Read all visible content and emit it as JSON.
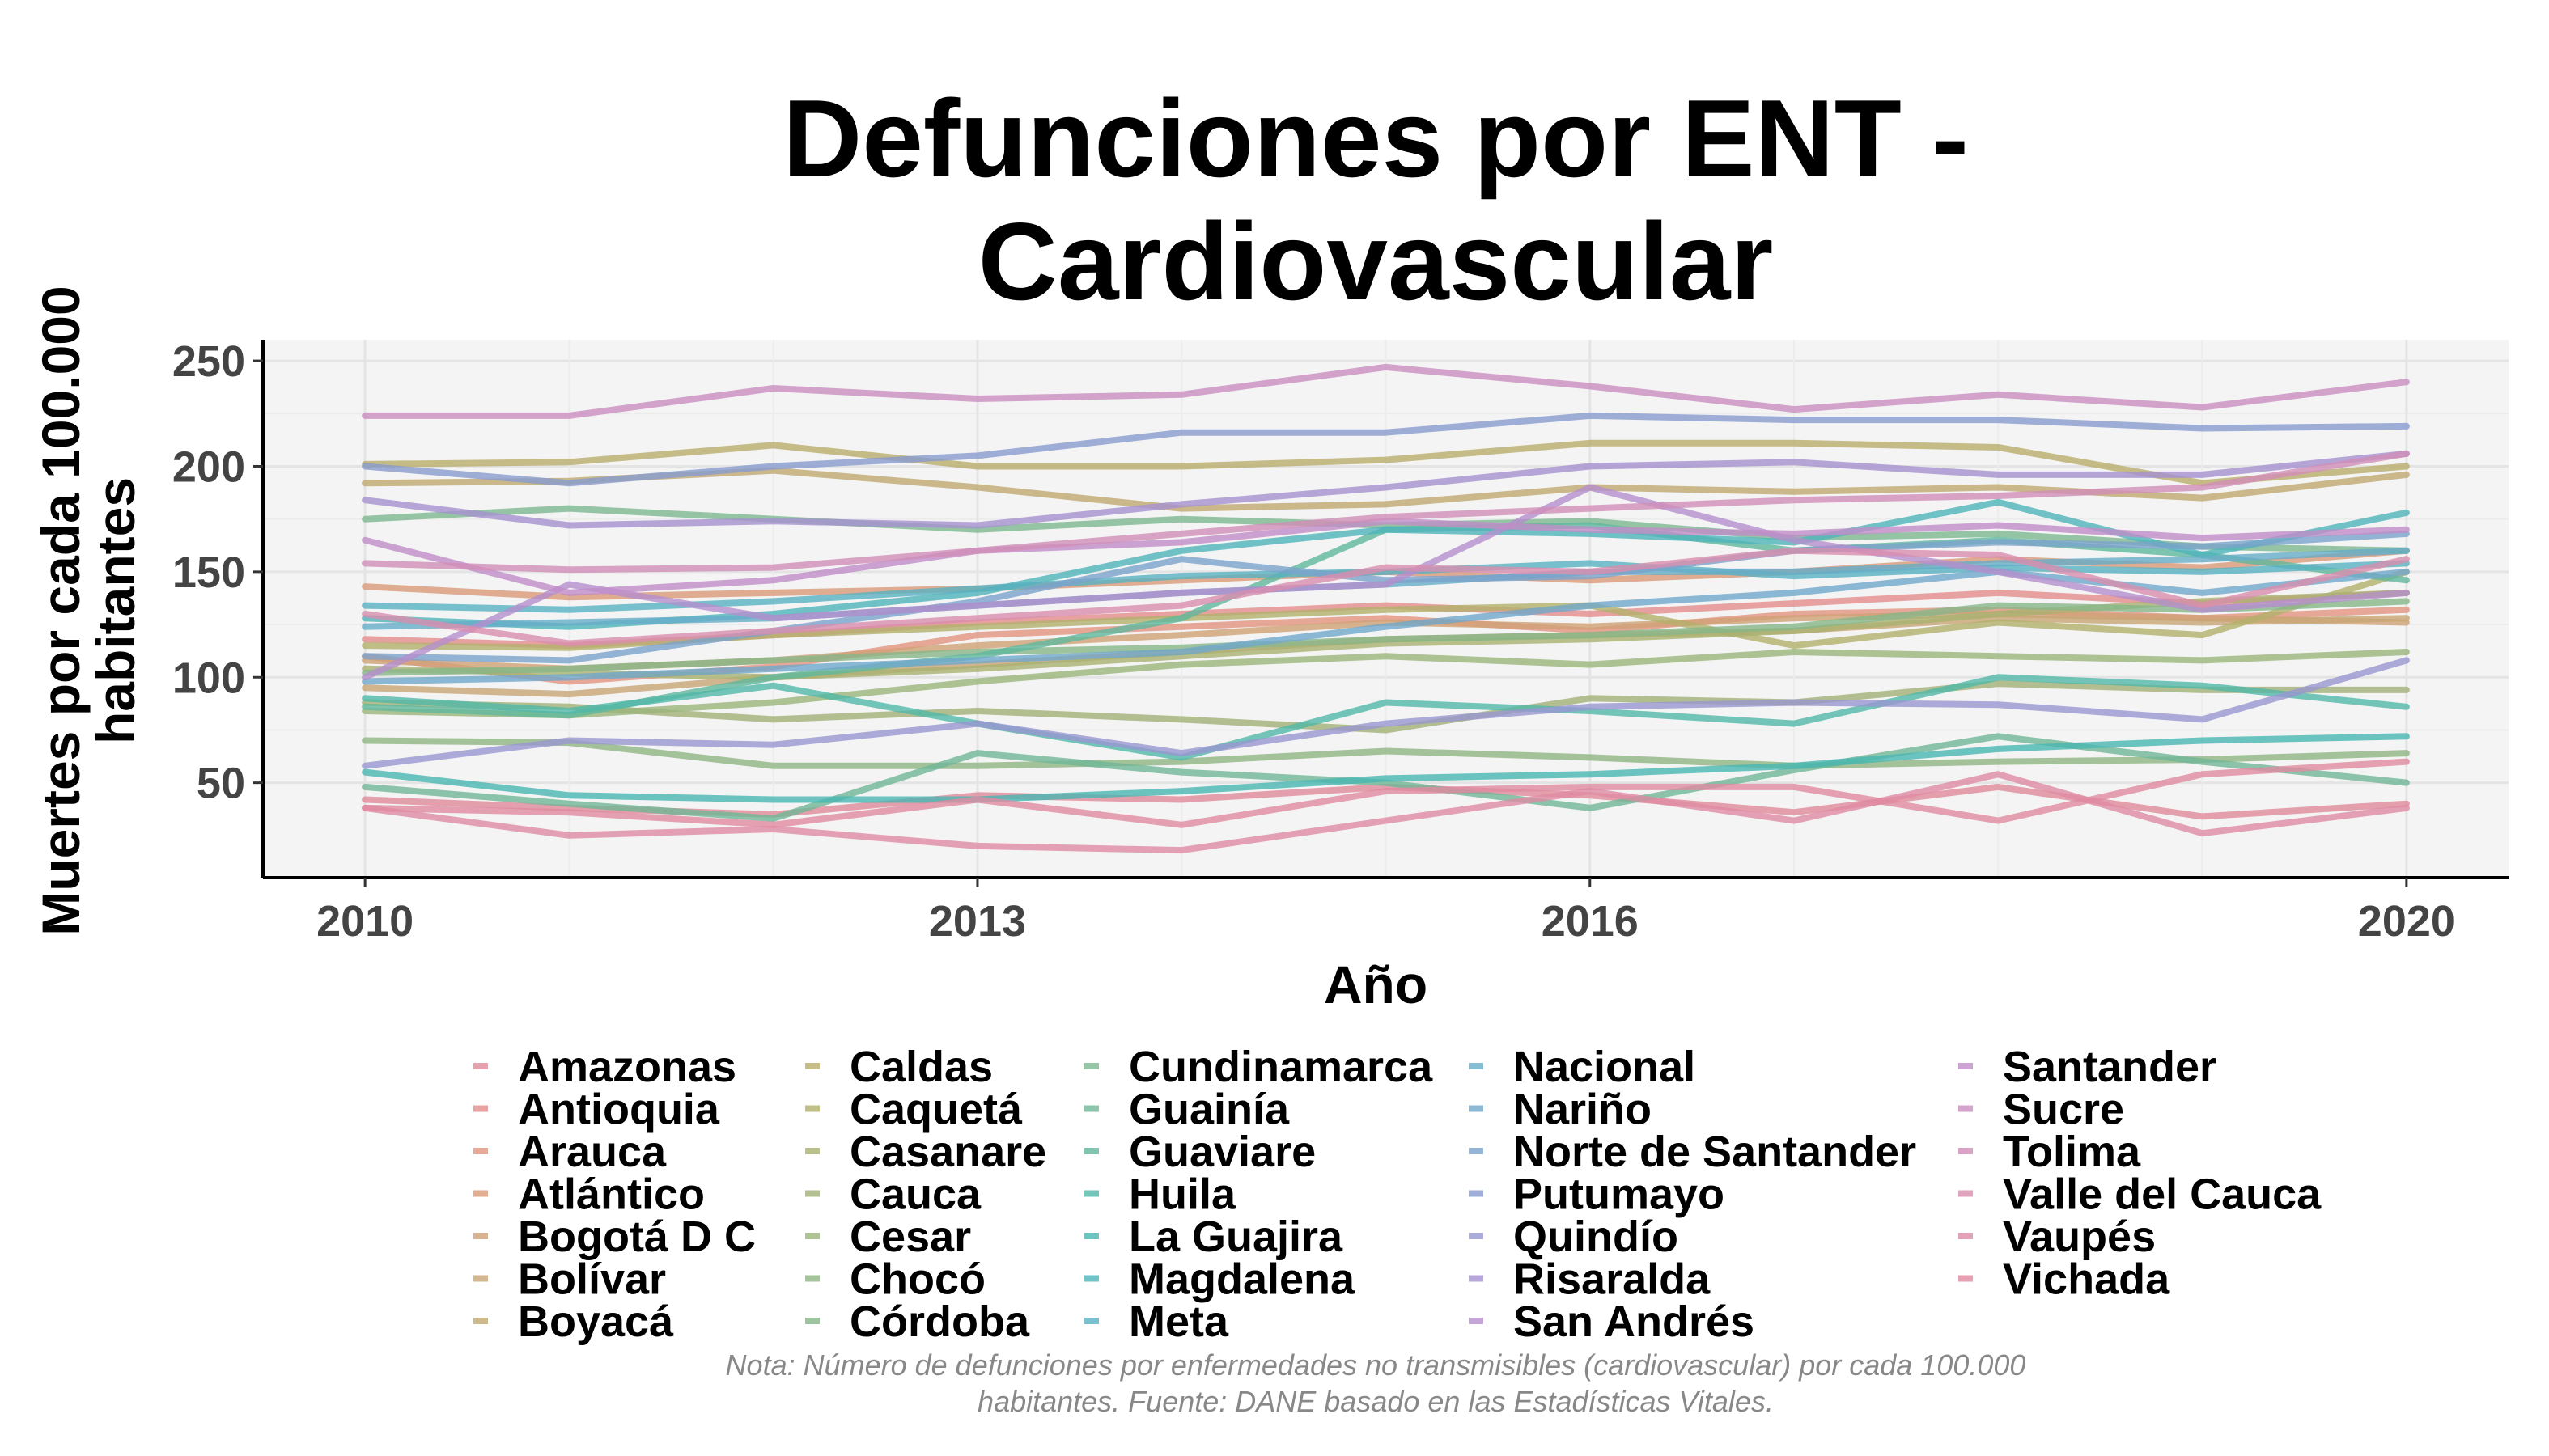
{
  "chart_data": {
    "type": "line",
    "title": [
      "Defunciones por ENT -",
      "Cardiovascular"
    ],
    "xlabel": "Año",
    "ylabel": [
      "Muertes por cada 100.000",
      "habitantes"
    ],
    "x": [
      2010,
      2011,
      2012,
      2013,
      2014,
      2015,
      2016,
      2017,
      2018,
      2019,
      2020
    ],
    "xticks": [
      "2010",
      "2013",
      "2016",
      "2020"
    ],
    "xtick_values": [
      2010,
      2013,
      2016,
      2020
    ],
    "yticks": [
      "50",
      "100",
      "150",
      "200",
      "250"
    ],
    "ytick_values": [
      50,
      100,
      150,
      200,
      250
    ],
    "xlim": [
      2009.5,
      2020.5
    ],
    "ylim": [
      5,
      260
    ],
    "grid": true,
    "legend_position": "bottom",
    "caption": [
      "Nota: Número de defunciones por enfermedades no transmisibles (cardiovascular) por cada 100.000",
      "habitantes. Fuente: DANE basado en las Estadísticas Vitales."
    ],
    "series": [
      {
        "name": "Amazonas",
        "color": "#E08A9A",
        "values": [
          42,
          38,
          35,
          44,
          42,
          48,
          44,
          36,
          48,
          34,
          40
        ]
      },
      {
        "name": "Antioquia",
        "color": "#E48C8C",
        "values": [
          118,
          115,
          120,
          126,
          130,
          134,
          130,
          135,
          140,
          135,
          140
        ]
      },
      {
        "name": "Arauca",
        "color": "#E2937F",
        "values": [
          110,
          98,
          105,
          120,
          124,
          128,
          122,
          130,
          132,
          128,
          132
        ]
      },
      {
        "name": "Atlántico",
        "color": "#DA9A78",
        "values": [
          143,
          138,
          140,
          142,
          146,
          150,
          146,
          150,
          156,
          152,
          160
        ]
      },
      {
        "name": "Bogotá D C",
        "color": "#D0A176",
        "values": [
          108,
          104,
          108,
          115,
          120,
          126,
          124,
          128,
          130,
          128,
          126
        ]
      },
      {
        "name": "Bolívar",
        "color": "#C8A574",
        "values": [
          95,
          92,
          100,
          106,
          112,
          118,
          120,
          122,
          128,
          126,
          128
        ]
      },
      {
        "name": "Boyacá",
        "color": "#BFA86F",
        "values": [
          192,
          193,
          198,
          190,
          180,
          182,
          190,
          188,
          190,
          185,
          196
        ]
      },
      {
        "name": "Caldas",
        "color": "#B9AC6B",
        "values": [
          201,
          202,
          210,
          200,
          200,
          203,
          211,
          211,
          209,
          192,
          200
        ]
      },
      {
        "name": "Caquetá",
        "color": "#B3B06C",
        "values": [
          115,
          114,
          120,
          124,
          128,
          132,
          134,
          115,
          126,
          120,
          150
        ]
      },
      {
        "name": "Casanare",
        "color": "#A9B271",
        "values": [
          104,
          102,
          100,
          104,
          110,
          116,
          118,
          122,
          130,
          136,
          140
        ]
      },
      {
        "name": "Cauca",
        "color": "#A2B077",
        "values": [
          88,
          86,
          80,
          84,
          80,
          75,
          90,
          88,
          97,
          94,
          94
        ]
      },
      {
        "name": "Cesar",
        "color": "#9AB57A",
        "values": [
          84,
          82,
          88,
          98,
          106,
          110,
          106,
          112,
          110,
          108,
          112
        ]
      },
      {
        "name": "Chocó",
        "color": "#8FB582",
        "values": [
          70,
          69,
          58,
          58,
          60,
          65,
          62,
          58,
          60,
          61,
          64
        ]
      },
      {
        "name": "Córdoba",
        "color": "#86B788",
        "values": [
          102,
          104,
          108,
          112,
          114,
          118,
          120,
          124,
          134,
          132,
          136
        ]
      },
      {
        "name": "Cundinamarca",
        "color": "#7DB890",
        "values": [
          175,
          180,
          175,
          170,
          175,
          172,
          174,
          166,
          168,
          162,
          160
        ]
      },
      {
        "name": "Guainía",
        "color": "#6FB796",
        "values": [
          48,
          40,
          33,
          64,
          55,
          50,
          38,
          56,
          72,
          60,
          50
        ]
      },
      {
        "name": "Guaviare",
        "color": "#5FB89E",
        "values": [
          86,
          82,
          100,
          110,
          128,
          170,
          172,
          160,
          165,
          158,
          146
        ]
      },
      {
        "name": "Huila",
        "color": "#50B8A8",
        "values": [
          90,
          84,
          96,
          78,
          62,
          88,
          84,
          78,
          100,
          96,
          86
        ]
      },
      {
        "name": "La Guajira",
        "color": "#47B7B2",
        "values": [
          55,
          44,
          42,
          42,
          46,
          52,
          54,
          58,
          66,
          70,
          72
        ]
      },
      {
        "name": "Magdalena",
        "color": "#4DB4BA",
        "values": [
          128,
          124,
          130,
          140,
          160,
          170,
          168,
          164,
          183,
          158,
          178
        ]
      },
      {
        "name": "Meta",
        "color": "#58B2C2",
        "values": [
          134,
          132,
          136,
          142,
          148,
          150,
          154,
          148,
          152,
          150,
          154
        ]
      },
      {
        "name": "Nacional",
        "color": "#66ADC8",
        "values": [
          124,
          126,
          128,
          134,
          140,
          144,
          150,
          150,
          154,
          156,
          160
        ]
      },
      {
        "name": "Nariño",
        "color": "#6FA7CA",
        "values": [
          98,
          100,
          104,
          108,
          112,
          124,
          134,
          140,
          150,
          140,
          150
        ]
      },
      {
        "name": "Norte de Santander",
        "color": "#7AA2CC",
        "values": [
          110,
          108,
          122,
          136,
          156,
          146,
          148,
          160,
          164,
          162,
          168
        ]
      },
      {
        "name": "Putumayo",
        "color": "#879BCE",
        "values": [
          200,
          192,
          200,
          205,
          216,
          216,
          224,
          222,
          222,
          218,
          219
        ]
      },
      {
        "name": "Quindío",
        "color": "#9896CF",
        "values": [
          58,
          70,
          68,
          78,
          64,
          78,
          86,
          88,
          87,
          80,
          108
        ]
      },
      {
        "name": "Risaralda",
        "color": "#A591CF",
        "values": [
          184,
          172,
          174,
          172,
          182,
          190,
          200,
          202,
          196,
          196,
          206
        ]
      },
      {
        "name": "San Andrés",
        "color": "#B48ECD",
        "values": [
          100,
          144,
          128,
          134,
          140,
          144,
          190,
          165,
          150,
          132,
          140
        ]
      },
      {
        "name": "Santander",
        "color": "#C18CC8",
        "values": [
          165,
          140,
          146,
          160,
          164,
          174,
          170,
          168,
          172,
          166,
          170
        ]
      },
      {
        "name": "Sucre",
        "color": "#C98DC0",
        "values": [
          224,
          224,
          237,
          232,
          234,
          247,
          238,
          227,
          234,
          228,
          240
        ]
      },
      {
        "name": "Tolima",
        "color": "#D18DB8",
        "values": [
          154,
          151,
          152,
          160,
          168,
          176,
          180,
          184,
          186,
          190,
          206
        ]
      },
      {
        "name": "Valle del Cauca",
        "color": "#D98DAE",
        "values": [
          130,
          116,
          122,
          128,
          134,
          152,
          150,
          160,
          158,
          134,
          156
        ]
      },
      {
        "name": "Vaupés",
        "color": "#DE8BA4",
        "values": [
          38,
          25,
          28,
          20,
          18,
          32,
          46,
          32,
          54,
          26,
          38
        ]
      },
      {
        "name": "Vichada",
        "color": "#E089A0",
        "values": [
          38,
          36,
          30,
          42,
          30,
          46,
          48,
          48,
          32,
          54,
          60
        ]
      }
    ]
  }
}
